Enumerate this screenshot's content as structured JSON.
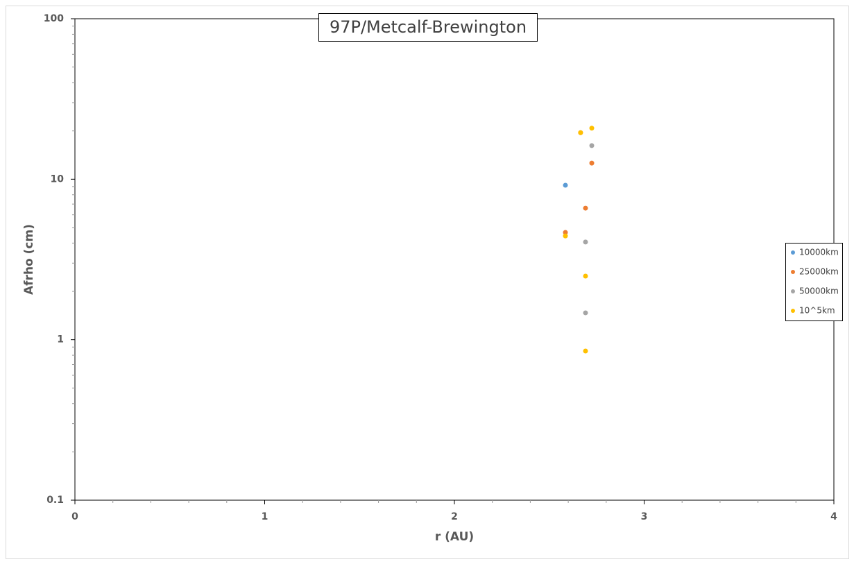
{
  "chart_data": {
    "type": "scatter",
    "title": "97P/Metcalf-Brewington",
    "x_label": "r (AU)",
    "y_label": "Afrho (cm)",
    "xlim": [
      0,
      4
    ],
    "xticks": [
      0,
      1,
      2,
      3,
      4
    ],
    "ylim": [
      0.1,
      100
    ],
    "yticks": [
      0.1,
      1,
      10,
      100
    ],
    "y_scale": "log",
    "legend": "right",
    "series": [
      {
        "name": "10000km",
        "color": "#5b9bd5",
        "x": [
          2.585
        ],
        "values": [
          9.17
        ]
      },
      {
        "name": "25000km",
        "color": "#ed7d31",
        "x": [
          2.585,
          2.691,
          2.724,
          2.665
        ],
        "values": [
          4.66,
          6.6,
          12.6,
          19.5
        ]
      },
      {
        "name": "50000km",
        "color": "#a5a5a5",
        "x": [
          2.724,
          2.691,
          2.691
        ],
        "values": [
          16.2,
          4.06,
          1.47
        ]
      },
      {
        "name": "10^5km",
        "color": "#ffc000",
        "x": [
          2.724,
          2.665,
          2.585,
          2.691,
          2.691
        ],
        "values": [
          20.8,
          19.5,
          4.43,
          2.49,
          0.85
        ]
      }
    ]
  }
}
